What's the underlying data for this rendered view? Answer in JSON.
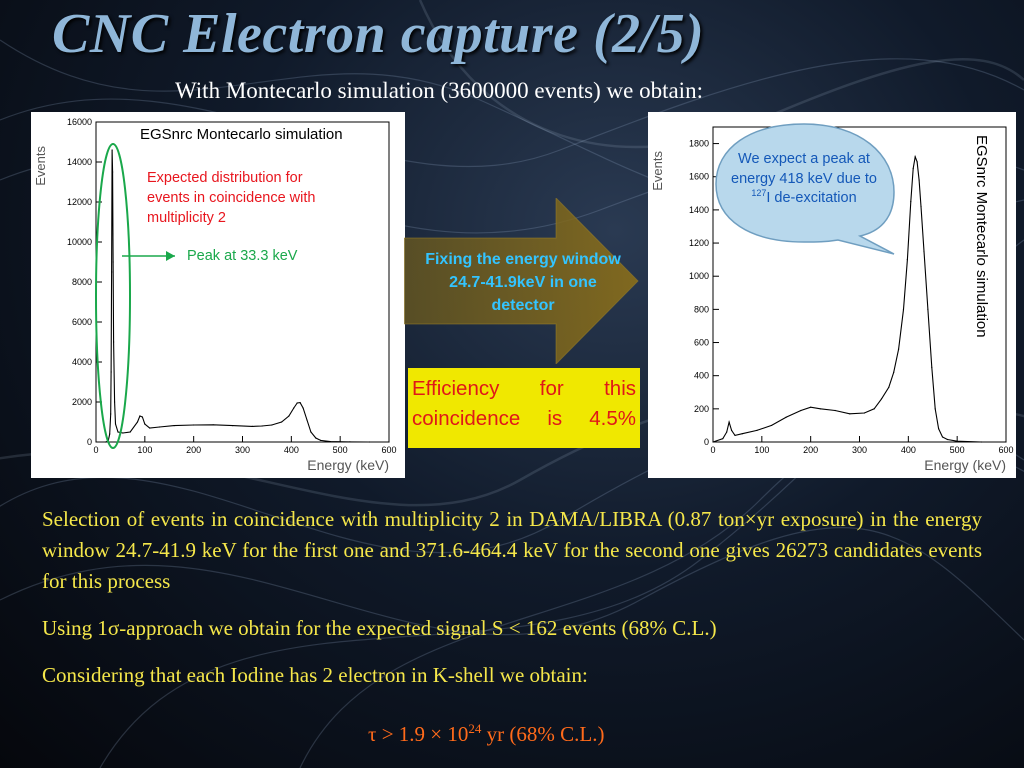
{
  "slide": {
    "title": "CNC Electron capture (2/5)",
    "subtitle": "With Montecarlo simulation (3600000 events) we obtain:"
  },
  "left_plot": {
    "sim_label": "EGSnrc Montecarlo simulation",
    "expected_distribution": "Expected distribution for events in coincidence with multiplicity 2",
    "peak_label": "Peak at 33.3 keV",
    "ylabel": "Events",
    "xlabel": "Energy (keV)",
    "annotation_color": "#e8161e",
    "peak_color": "#1aa84b"
  },
  "arrow": {
    "text": "Fixing the energy window 24.7-41.9keV in one detector",
    "color": "#33c4ff"
  },
  "efficiency": {
    "line1": "Efficiency for this",
    "line2": "coincidence is 4.5%",
    "background": "#f0e800"
  },
  "right_plot": {
    "sim_label": "EGSnrc Montecarlo simulation",
    "callout_pre": "We expect a peak at energy 418 keV due to ",
    "callout_sup": "127",
    "callout_post": "I de-excitation",
    "ylabel": "Events",
    "xlabel": "Energy (keV)"
  },
  "body": {
    "para1": "Selection of events in coincidence with multiplicity 2 in DAMA/LIBRA (0.87 ton×yr exposure) in the energy window 24.7-41.9 keV for the first one and 371.6-464.4 keV for the second one gives 26273 candidates events for this process",
    "para2": "Using 1σ-approach we obtain for the expected signal S < 162 events (68% C.L.)",
    "para3": "Considering that each Iodine has 2 electron in K-shell we obtain:",
    "formula_pre": "τ > 1.9 × 10",
    "formula_exp": "24",
    "formula_post": " yr (68% C.L.)"
  },
  "chart_data": [
    {
      "type": "line",
      "xlabel": "Energy (keV)",
      "ylabel": "Events",
      "xlim": [
        0,
        600
      ],
      "ylim": [
        0,
        16000
      ],
      "x_ticks": [
        0,
        100,
        200,
        300,
        400,
        500,
        600
      ],
      "y_ticks": [
        0,
        2000,
        4000,
        6000,
        8000,
        10000,
        12000,
        14000,
        16000
      ],
      "series": [
        {
          "x": [
            20,
            25,
            28,
            30,
            31,
            32,
            33,
            34,
            35,
            36,
            38,
            40,
            45,
            55,
            70,
            85,
            90,
            95,
            100,
            110,
            130,
            160,
            200,
            240,
            280,
            320,
            340,
            360,
            380,
            395,
            405,
            412,
            418,
            424,
            432,
            440,
            450,
            460,
            480,
            520,
            560,
            600
          ],
          "y": [
            0,
            50,
            400,
            1400,
            3500,
            8500,
            14600,
            13500,
            9000,
            5000,
            2000,
            900,
            500,
            450,
            500,
            1000,
            1300,
            1250,
            900,
            700,
            750,
            820,
            850,
            860,
            820,
            780,
            800,
            850,
            1000,
            1300,
            1700,
            1950,
            1970,
            1700,
            1100,
            500,
            200,
            80,
            20,
            5,
            0,
            0
          ]
        }
      ]
    },
    {
      "type": "line",
      "xlabel": "Energy (keV)",
      "ylabel": "Events",
      "xlim": [
        0,
        600
      ],
      "ylim": [
        0,
        1900
      ],
      "x_ticks": [
        0,
        100,
        200,
        300,
        400,
        500,
        600
      ],
      "y_ticks": [
        0,
        200,
        400,
        600,
        800,
        1000,
        1200,
        1400,
        1600,
        1800
      ],
      "series": [
        {
          "x": [
            0,
            20,
            28,
            33,
            38,
            45,
            60,
            90,
            120,
            150,
            180,
            200,
            220,
            250,
            280,
            310,
            330,
            345,
            360,
            370,
            380,
            390,
            398,
            405,
            410,
            414,
            418,
            422,
            426,
            432,
            440,
            448,
            455,
            462,
            470,
            480,
            500,
            550,
            600
          ],
          "y": [
            0,
            20,
            60,
            120,
            70,
            40,
            50,
            70,
            100,
            150,
            190,
            210,
            200,
            190,
            170,
            175,
            200,
            260,
            330,
            420,
            560,
            800,
            1100,
            1450,
            1650,
            1720,
            1690,
            1580,
            1420,
            1150,
            800,
            450,
            200,
            80,
            30,
            15,
            5,
            0,
            0
          ]
        }
      ]
    }
  ]
}
